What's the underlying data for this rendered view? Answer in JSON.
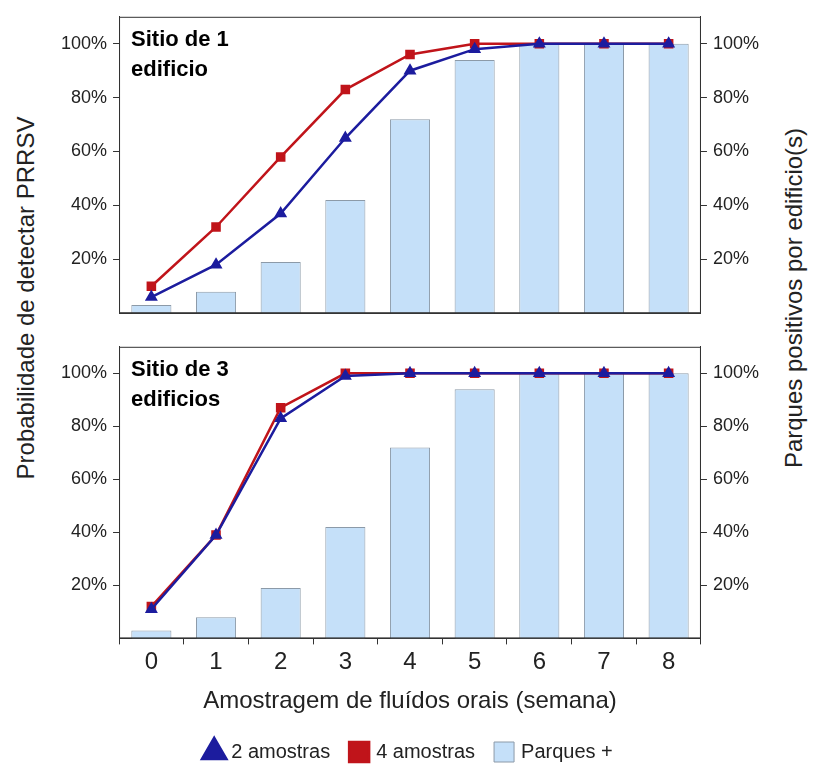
{
  "chart_data": [
    {
      "type": "bar",
      "title": "Sitio de 1\nedificio",
      "ylabel": "Probabilidade de detectar PRRSV",
      "y2label": "Parques positivos por edificio(s)",
      "categories": [
        "0",
        "1",
        "2",
        "3",
        "4",
        "5",
        "6",
        "7",
        "8"
      ],
      "series": [
        {
          "name": "Parques +",
          "type": "bar",
          "color": "#c5e0f9",
          "axis": "y2",
          "values": [
            3,
            8,
            19,
            42,
            72,
            94,
            100,
            100,
            100
          ]
        },
        {
          "name": "2 amostras",
          "type": "line",
          "color": "#1c1c9e",
          "marker": "triangle",
          "line_style": "solid",
          "values": [
            6,
            18,
            37,
            65,
            90,
            98,
            100,
            100,
            100
          ]
        },
        {
          "name": "4 amostras",
          "type": "line",
          "color": "#c0141a",
          "marker": "square",
          "line_style": "solid",
          "values": [
            10,
            32,
            58,
            83,
            96,
            100,
            100,
            100,
            100
          ]
        }
      ],
      "ylim": [
        0,
        110
      ],
      "yticks": [
        {
          "value": 20,
          "label": "20%"
        },
        {
          "value": 40,
          "label": "40%"
        },
        {
          "value": 60,
          "label": "60%"
        },
        {
          "value": 80,
          "label": "80%"
        },
        {
          "value": 100,
          "label": "100%"
        }
      ],
      "y2lim": [
        0,
        110
      ],
      "y2ticks": [
        {
          "value": 20,
          "label": "20%"
        },
        {
          "value": 40,
          "label": "40%"
        },
        {
          "value": 60,
          "label": "60%"
        },
        {
          "value": 80,
          "label": "80%"
        },
        {
          "value": 100,
          "label": "100%"
        }
      ],
      "grid": false,
      "tick_labels": "y"
    },
    {
      "type": "bar",
      "title": "Sitio de 3\nedificios",
      "xlabel": "Amostragem de fluídos orais (semana)",
      "categories": [
        "0",
        "1",
        "2",
        "3",
        "4",
        "5",
        "6",
        "7",
        "8"
      ],
      "series": [
        {
          "name": "Parques +",
          "type": "bar",
          "color": "#c5e0f9",
          "axis": "y2",
          "values": [
            3,
            8,
            19,
            42,
            72,
            94,
            100,
            100,
            100
          ]
        },
        {
          "name": "2 amostras",
          "type": "line",
          "color": "#1c1c9e",
          "marker": "triangle",
          "line_style": "solid",
          "values": [
            11,
            39,
            83,
            99,
            100,
            100,
            100,
            100,
            100
          ]
        },
        {
          "name": "4 amostras",
          "type": "line",
          "color": "#c0141a",
          "marker": "square",
          "line_style": "solid",
          "values": [
            12,
            39,
            87,
            100,
            100,
            100,
            100,
            100,
            100
          ]
        }
      ],
      "ylim": [
        0,
        110
      ],
      "yticks": [
        {
          "value": 20,
          "label": "20%"
        },
        {
          "value": 40,
          "label": "40%"
        },
        {
          "value": 60,
          "label": "60%"
        },
        {
          "value": 80,
          "label": "80%"
        },
        {
          "value": 100,
          "label": "100%"
        }
      ],
      "y2lim": [
        0,
        110
      ],
      "y2ticks": [
        {
          "value": 20,
          "label": "20%"
        },
        {
          "value": 40,
          "label": "40%"
        },
        {
          "value": 60,
          "label": "60%"
        },
        {
          "value": 80,
          "label": "80%"
        },
        {
          "value": 100,
          "label": "100%"
        }
      ],
      "grid": false,
      "legend": "bottom"
    }
  ]
}
